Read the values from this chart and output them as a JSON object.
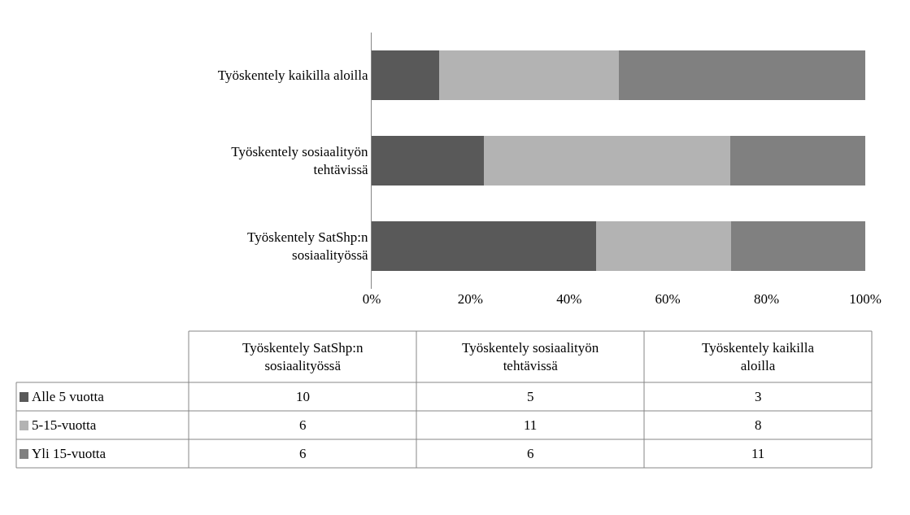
{
  "chart_data": {
    "type": "bar",
    "orientation": "horizontal",
    "stacked": true,
    "categories": [
      "Työskentely kaikilla aloilla",
      "Työskentely sosiaalityön tehtävissä",
      "Työskentely SatShp:n sosiaalityössä"
    ],
    "series": [
      {
        "name": "Alle 5 vuotta",
        "color": "#595959",
        "values": [
          13.6,
          22.7,
          45.5
        ]
      },
      {
        "name": "5-15-vuotta",
        "color": "#b3b3b3",
        "values": [
          36.4,
          50.0,
          27.3
        ]
      },
      {
        "name": "Yli 15-vuotta",
        "color": "#808080",
        "values": [
          50.0,
          27.3,
          27.2
        ]
      }
    ],
    "annotations": [
      "10",
      "5",
      "3",
      "6",
      "11",
      "8",
      "6",
      "6",
      "11"
    ],
    "xlim": [
      0,
      100
    ],
    "xticks": [
      {
        "value": 0,
        "label": "0%"
      },
      {
        "value": 20,
        "label": "20%"
      },
      {
        "value": 40,
        "label": "40%"
      },
      {
        "value": 60,
        "label": "60%"
      },
      {
        "value": 80,
        "label": "80%"
      },
      {
        "value": 100,
        "label": "100%"
      }
    ],
    "legend": "bottom"
  }
}
